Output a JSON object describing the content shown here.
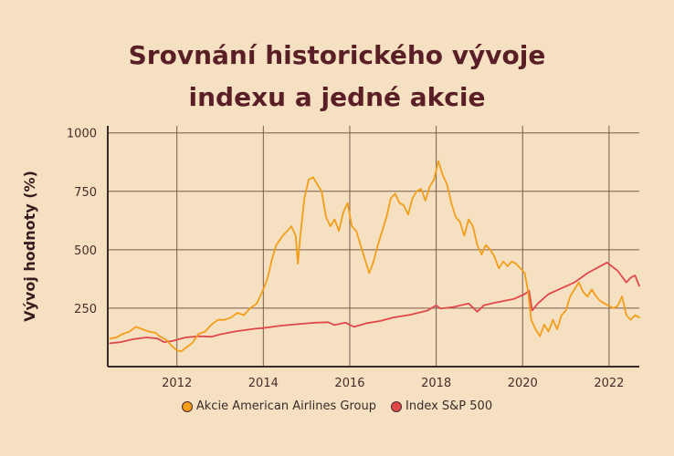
{
  "chart_data": {
    "type": "line",
    "title": "Srovnání historického vývoje indexu a jedné akcie",
    "title_lines": [
      "Srovnání historického vývoje",
      "indexu a jedné akcie"
    ],
    "xlabel": "",
    "ylabel": "Vývoj hodnoty (%)",
    "x_ticks": [
      "2012",
      "2014",
      "2016",
      "2018",
      "2020",
      "2022"
    ],
    "y_ticks": [
      "250",
      "500",
      "750",
      "1000"
    ],
    "xlim": [
      2010.4,
      2022.7
    ],
    "ylim": [
      0,
      1030
    ],
    "grid": true,
    "legend_position": "bottom",
    "series": [
      {
        "name": "Akcie American Airlines Group",
        "color": "#f29e1a",
        "points": [
          [
            2010.45,
            120
          ],
          [
            2010.6,
            125
          ],
          [
            2010.75,
            140
          ],
          [
            2010.9,
            150
          ],
          [
            2011.05,
            170
          ],
          [
            2011.2,
            160
          ],
          [
            2011.35,
            150
          ],
          [
            2011.5,
            145
          ],
          [
            2011.6,
            130
          ],
          [
            2011.75,
            115
          ],
          [
            2011.9,
            85
          ],
          [
            2012.0,
            70
          ],
          [
            2012.1,
            65
          ],
          [
            2012.2,
            80
          ],
          [
            2012.35,
            100
          ],
          [
            2012.5,
            140
          ],
          [
            2012.65,
            150
          ],
          [
            2012.8,
            180
          ],
          [
            2012.95,
            200
          ],
          [
            2013.1,
            200
          ],
          [
            2013.25,
            210
          ],
          [
            2013.4,
            230
          ],
          [
            2013.55,
            220
          ],
          [
            2013.7,
            250
          ],
          [
            2013.85,
            270
          ],
          [
            2014.0,
            330
          ],
          [
            2014.1,
            380
          ],
          [
            2014.2,
            460
          ],
          [
            2014.3,
            520
          ],
          [
            2014.45,
            560
          ],
          [
            2014.55,
            580
          ],
          [
            2014.65,
            600
          ],
          [
            2014.75,
            560
          ],
          [
            2014.8,
            440
          ],
          [
            2014.85,
            550
          ],
          [
            2014.95,
            720
          ],
          [
            2015.05,
            800
          ],
          [
            2015.15,
            810
          ],
          [
            2015.25,
            780
          ],
          [
            2015.35,
            750
          ],
          [
            2015.45,
            640
          ],
          [
            2015.55,
            600
          ],
          [
            2015.65,
            630
          ],
          [
            2015.75,
            580
          ],
          [
            2015.85,
            660
          ],
          [
            2015.95,
            700
          ],
          [
            2016.05,
            600
          ],
          [
            2016.15,
            580
          ],
          [
            2016.25,
            520
          ],
          [
            2016.35,
            460
          ],
          [
            2016.45,
            400
          ],
          [
            2016.55,
            450
          ],
          [
            2016.65,
            520
          ],
          [
            2016.75,
            580
          ],
          [
            2016.85,
            640
          ],
          [
            2016.95,
            720
          ],
          [
            2017.05,
            740
          ],
          [
            2017.15,
            700
          ],
          [
            2017.25,
            690
          ],
          [
            2017.35,
            650
          ],
          [
            2017.45,
            720
          ],
          [
            2017.55,
            750
          ],
          [
            2017.65,
            760
          ],
          [
            2017.75,
            710
          ],
          [
            2017.85,
            770
          ],
          [
            2017.95,
            800
          ],
          [
            2018.05,
            880
          ],
          [
            2018.15,
            820
          ],
          [
            2018.25,
            780
          ],
          [
            2018.35,
            700
          ],
          [
            2018.45,
            640
          ],
          [
            2018.55,
            620
          ],
          [
            2018.65,
            560
          ],
          [
            2018.75,
            630
          ],
          [
            2018.85,
            600
          ],
          [
            2018.95,
            520
          ],
          [
            2019.05,
            480
          ],
          [
            2019.15,
            520
          ],
          [
            2019.25,
            500
          ],
          [
            2019.35,
            470
          ],
          [
            2019.45,
            420
          ],
          [
            2019.55,
            450
          ],
          [
            2019.65,
            430
          ],
          [
            2019.75,
            450
          ],
          [
            2019.85,
            440
          ],
          [
            2019.95,
            420
          ],
          [
            2020.05,
            400
          ],
          [
            2020.12,
            330
          ],
          [
            2020.2,
            200
          ],
          [
            2020.3,
            160
          ],
          [
            2020.4,
            130
          ],
          [
            2020.5,
            180
          ],
          [
            2020.6,
            150
          ],
          [
            2020.7,
            200
          ],
          [
            2020.8,
            160
          ],
          [
            2020.9,
            220
          ],
          [
            2021.0,
            240
          ],
          [
            2021.1,
            300
          ],
          [
            2021.2,
            330
          ],
          [
            2021.3,
            360
          ],
          [
            2021.4,
            320
          ],
          [
            2021.5,
            300
          ],
          [
            2021.6,
            330
          ],
          [
            2021.7,
            300
          ],
          [
            2021.8,
            280
          ],
          [
            2021.9,
            270
          ],
          [
            2022.0,
            260
          ],
          [
            2022.1,
            250
          ],
          [
            2022.2,
            260
          ],
          [
            2022.3,
            300
          ],
          [
            2022.4,
            220
          ],
          [
            2022.5,
            200
          ],
          [
            2022.6,
            220
          ],
          [
            2022.7,
            210
          ]
        ]
      },
      {
        "name": "Index S&P 500",
        "color": "#e0484a",
        "points": [
          [
            2010.45,
            100
          ],
          [
            2010.7,
            105
          ],
          [
            2011.0,
            118
          ],
          [
            2011.3,
            125
          ],
          [
            2011.55,
            120
          ],
          [
            2011.7,
            105
          ],
          [
            2011.9,
            110
          ],
          [
            2012.2,
            125
          ],
          [
            2012.5,
            130
          ],
          [
            2012.8,
            128
          ],
          [
            2013.0,
            138
          ],
          [
            2013.4,
            152
          ],
          [
            2013.8,
            162
          ],
          [
            2014.0,
            165
          ],
          [
            2014.4,
            175
          ],
          [
            2014.8,
            182
          ],
          [
            2015.2,
            188
          ],
          [
            2015.5,
            190
          ],
          [
            2015.65,
            178
          ],
          [
            2015.9,
            188
          ],
          [
            2016.1,
            170
          ],
          [
            2016.4,
            186
          ],
          [
            2016.7,
            195
          ],
          [
            2017.0,
            210
          ],
          [
            2017.4,
            222
          ],
          [
            2017.8,
            240
          ],
          [
            2018.0,
            262
          ],
          [
            2018.1,
            248
          ],
          [
            2018.4,
            255
          ],
          [
            2018.75,
            270
          ],
          [
            2018.95,
            235
          ],
          [
            2019.1,
            262
          ],
          [
            2019.4,
            275
          ],
          [
            2019.8,
            290
          ],
          [
            2020.05,
            310
          ],
          [
            2020.15,
            325
          ],
          [
            2020.22,
            240
          ],
          [
            2020.35,
            270
          ],
          [
            2020.6,
            310
          ],
          [
            2020.9,
            335
          ],
          [
            2021.2,
            360
          ],
          [
            2021.5,
            400
          ],
          [
            2021.8,
            430
          ],
          [
            2021.95,
            445
          ],
          [
            2022.2,
            410
          ],
          [
            2022.4,
            360
          ],
          [
            2022.5,
            380
          ],
          [
            2022.6,
            390
          ],
          [
            2022.7,
            345
          ]
        ]
      }
    ]
  }
}
